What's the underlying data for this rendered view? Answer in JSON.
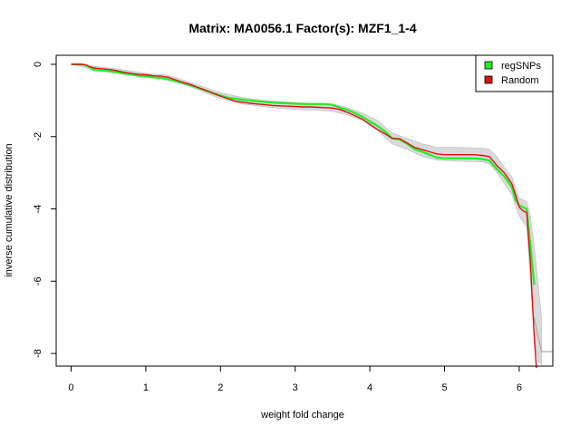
{
  "chart_data": {
    "type": "line",
    "title": "Matrix: MA0056.1 Factor(s): MZF1_1-4",
    "xlabel": "weight fold change",
    "ylabel": "inverse cumulative distribution",
    "xlim": [
      -0.2,
      6.45
    ],
    "ylim": [
      -8.35,
      0.25
    ],
    "x_ticks": [
      0,
      1,
      2,
      3,
      4,
      5,
      6
    ],
    "y_ticks": [
      0,
      -2,
      -4,
      -6,
      -8
    ],
    "grid": false,
    "legend_position": "top-right",
    "series": [
      {
        "name": "regSNPs",
        "color": "#22ee22",
        "x": [
          0,
          0.15,
          0.2,
          0.3,
          0.4,
          0.5,
          0.6,
          0.7,
          0.8,
          0.9,
          1.0,
          1.1,
          1.2,
          1.3,
          1.4,
          1.5,
          1.6,
          1.7,
          1.8,
          1.9,
          2.0,
          2.1,
          2.2,
          2.3,
          2.4,
          2.5,
          2.6,
          2.7,
          2.8,
          2.9,
          3.0,
          3.1,
          3.2,
          3.3,
          3.4,
          3.5,
          3.6,
          3.7,
          3.8,
          3.9,
          4.0,
          4.1,
          4.2,
          4.3,
          4.4,
          4.5,
          4.6,
          4.7,
          4.8,
          4.9,
          5.0,
          5.1,
          5.2,
          5.3,
          5.4,
          5.5,
          5.6,
          5.7,
          5.8,
          5.9,
          5.95,
          6.0,
          6.05,
          6.1,
          6.15,
          6.2
        ],
        "values": [
          0,
          0,
          -0.03,
          -0.15,
          -0.17,
          -0.19,
          -0.21,
          -0.25,
          -0.28,
          -0.32,
          -0.33,
          -0.36,
          -0.38,
          -0.42,
          -0.47,
          -0.52,
          -0.58,
          -0.65,
          -0.72,
          -0.8,
          -0.86,
          -0.92,
          -0.95,
          -0.98,
          -1.0,
          -1.02,
          -1.04,
          -1.06,
          -1.07,
          -1.08,
          -1.09,
          -1.1,
          -1.1,
          -1.1,
          -1.1,
          -1.12,
          -1.2,
          -1.26,
          -1.35,
          -1.45,
          -1.58,
          -1.7,
          -1.85,
          -2.05,
          -2.08,
          -2.2,
          -2.35,
          -2.42,
          -2.5,
          -2.58,
          -2.6,
          -2.6,
          -2.6,
          -2.6,
          -2.6,
          -2.62,
          -2.66,
          -2.9,
          -3.1,
          -3.4,
          -3.75,
          -3.9,
          -3.95,
          -4.0,
          -5.0,
          -6.1
        ]
      },
      {
        "name": "Random",
        "color": "#dd1111",
        "x": [
          0,
          0.15,
          0.2,
          0.3,
          0.4,
          0.5,
          0.6,
          0.7,
          0.8,
          0.9,
          1.0,
          1.1,
          1.2,
          1.3,
          1.4,
          1.5,
          1.6,
          1.7,
          1.8,
          1.9,
          2.0,
          2.1,
          2.2,
          2.3,
          2.4,
          2.5,
          2.6,
          2.7,
          2.8,
          2.9,
          3.0,
          3.1,
          3.2,
          3.3,
          3.4,
          3.5,
          3.6,
          3.7,
          3.8,
          3.9,
          4.0,
          4.1,
          4.2,
          4.3,
          4.4,
          4.5,
          4.6,
          4.7,
          4.8,
          4.9,
          5.0,
          5.1,
          5.2,
          5.3,
          5.4,
          5.5,
          5.6,
          5.7,
          5.8,
          5.9,
          5.95,
          6.0,
          6.05,
          6.1,
          6.15,
          6.2,
          6.23
        ],
        "values": [
          0,
          0,
          -0.02,
          -0.1,
          -0.12,
          -0.14,
          -0.17,
          -0.22,
          -0.25,
          -0.28,
          -0.29,
          -0.32,
          -0.33,
          -0.36,
          -0.43,
          -0.5,
          -0.56,
          -0.64,
          -0.72,
          -0.8,
          -0.88,
          -0.95,
          -1.02,
          -1.05,
          -1.08,
          -1.1,
          -1.12,
          -1.14,
          -1.15,
          -1.16,
          -1.17,
          -1.18,
          -1.18,
          -1.19,
          -1.2,
          -1.21,
          -1.25,
          -1.33,
          -1.42,
          -1.52,
          -1.66,
          -1.8,
          -1.92,
          -2.05,
          -2.06,
          -2.18,
          -2.3,
          -2.36,
          -2.42,
          -2.48,
          -2.5,
          -2.5,
          -2.5,
          -2.5,
          -2.5,
          -2.52,
          -2.55,
          -2.8,
          -3.0,
          -3.3,
          -3.6,
          -3.95,
          -4.05,
          -4.1,
          -5.5,
          -7.5,
          -8.4
        ]
      }
    ],
    "background_band": {
      "color": "#bbbbbb",
      "x": [
        0,
        0.3,
        0.6,
        1.0,
        1.3,
        1.6,
        2.0,
        2.3,
        2.6,
        3.0,
        3.3,
        3.5,
        3.7,
        3.9,
        4.1,
        4.3,
        4.5,
        4.7,
        4.9,
        5.2,
        5.5,
        5.6,
        5.7,
        5.8,
        5.9,
        6.0,
        6.1,
        6.15,
        6.2,
        6.25,
        6.3
      ],
      "upper": [
        0,
        -0.05,
        -0.12,
        -0.25,
        -0.3,
        -0.5,
        -0.78,
        -0.92,
        -1.0,
        -1.06,
        -1.08,
        -1.1,
        -1.2,
        -1.35,
        -1.55,
        -1.9,
        -2.05,
        -2.2,
        -2.3,
        -2.3,
        -2.32,
        -2.35,
        -2.55,
        -2.85,
        -3.1,
        -3.7,
        -3.8,
        -4.2,
        -5.0,
        -6.0,
        -7.0
      ],
      "lower": [
        0,
        -0.15,
        -0.25,
        -0.36,
        -0.42,
        -0.62,
        -0.95,
        -1.1,
        -1.18,
        -1.25,
        -1.27,
        -1.3,
        -1.4,
        -1.55,
        -1.82,
        -2.2,
        -2.35,
        -2.55,
        -2.65,
        -2.68,
        -2.7,
        -2.75,
        -3.0,
        -3.3,
        -3.6,
        -4.2,
        -4.5,
        -6.0,
        -7.5,
        -8.2,
        -8.3
      ]
    },
    "gray_tail": {
      "color": "#aaaaaa",
      "x": [
        6.2,
        6.25,
        6.3,
        6.45
      ],
      "values": [
        -7.0,
        -7.5,
        -7.95,
        -7.95
      ]
    }
  }
}
